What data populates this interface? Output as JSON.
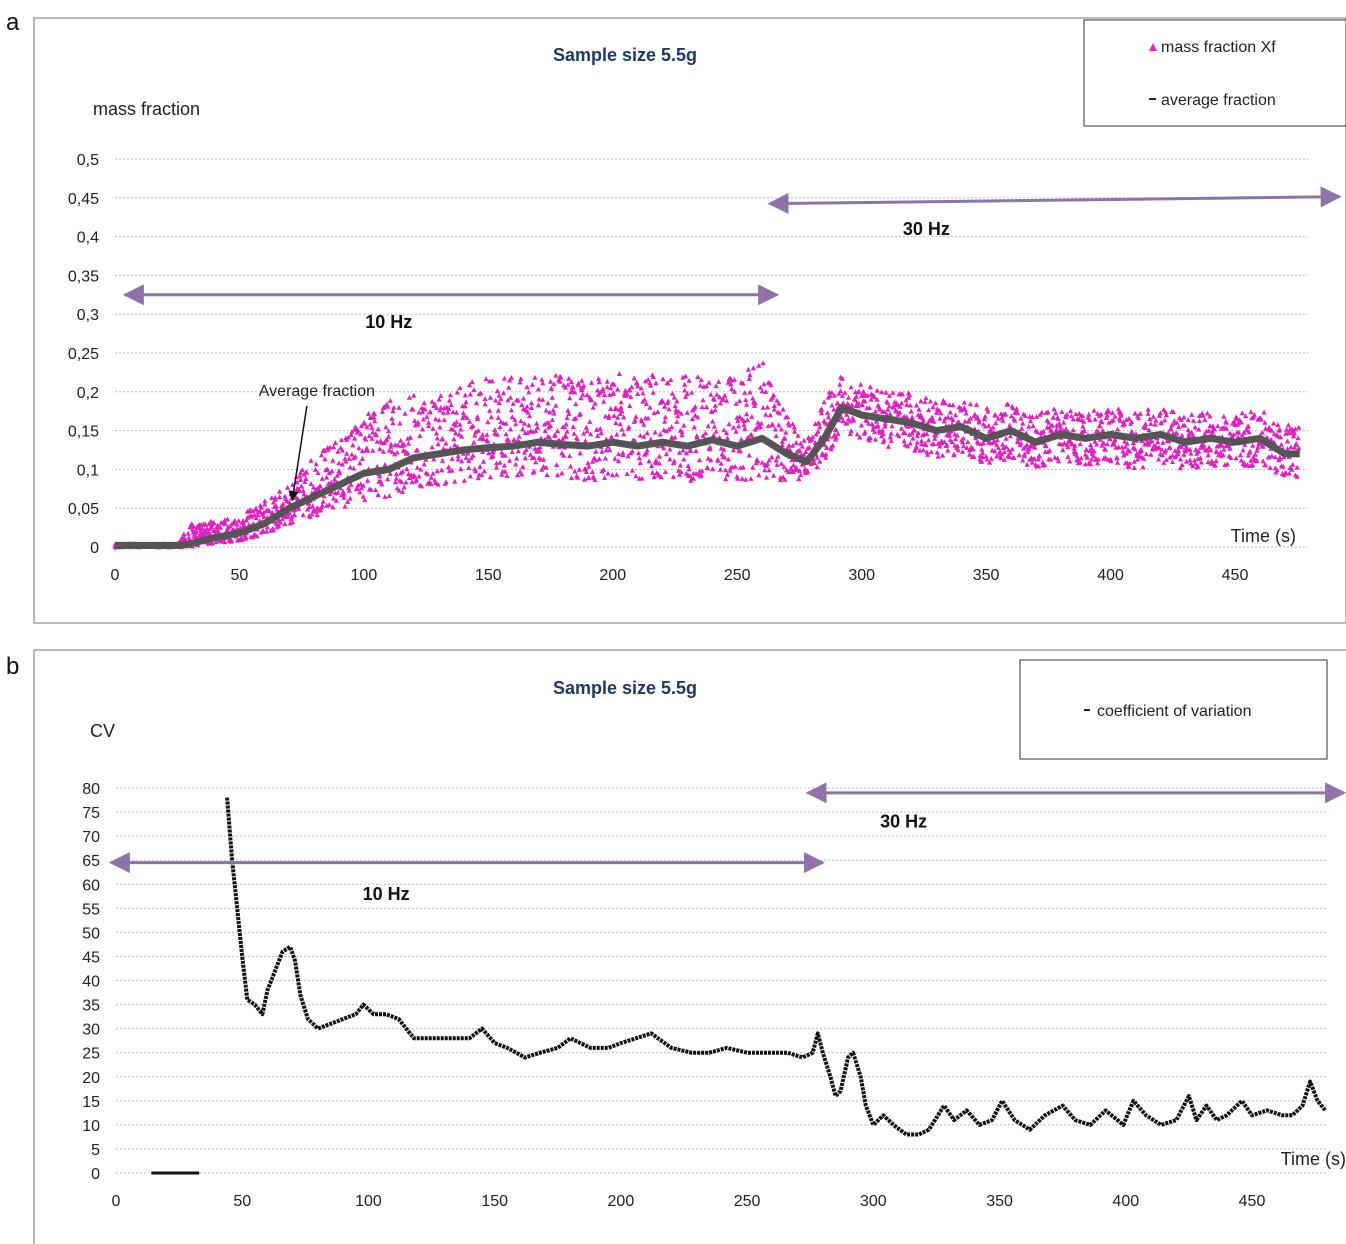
{
  "chart_data": [
    {
      "panel_label": "a",
      "type": "scatter",
      "title": "Sample size  5.5g",
      "ylabel": "mass fraction",
      "xlabel": "Time (s)",
      "xlim": [
        0,
        480
      ],
      "ylim": [
        0,
        0.5
      ],
      "x_ticks": [
        0,
        50,
        100,
        150,
        200,
        250,
        300,
        350,
        400,
        450
      ],
      "y_ticks": [
        "0",
        "0,05",
        "0,1",
        "0,15",
        "0,2",
        "0,25",
        "0,3",
        "0,35",
        "0,4",
        "0,45",
        "0,5"
      ],
      "y_tick_values": [
        0,
        0.05,
        0.1,
        0.15,
        0.2,
        0.25,
        0.3,
        0.35,
        0.4,
        0.45,
        0.5
      ],
      "grid": true,
      "legend_placement": "top-right",
      "legend": [
        "mass fraction Xf",
        "average fraction"
      ],
      "colors": {
        "scatter": "#e020c0",
        "average": "#555555",
        "arrow": "#8e72a8"
      },
      "annotations": [
        {
          "text": "10 Hz",
          "x_from": 4,
          "x_to": 266,
          "y": 0.325,
          "label_x": 110,
          "label_y": 0.29
        },
        {
          "text": "30 Hz",
          "x_from": 263,
          "x_to": 492,
          "y": 0.445,
          "label_x": 326,
          "label_y": 0.41
        },
        {
          "text": "Average fraction",
          "x": 72,
          "y": 0.06,
          "label_x": 53,
          "label_y": 0.2
        }
      ],
      "series": [
        {
          "name": "average fraction",
          "type": "line",
          "x": [
            0,
            25,
            30,
            40,
            50,
            60,
            70,
            80,
            90,
            100,
            110,
            120,
            130,
            140,
            150,
            160,
            170,
            180,
            190,
            200,
            210,
            220,
            230,
            240,
            250,
            260,
            270,
            278,
            285,
            292,
            300,
            310,
            320,
            330,
            340,
            350,
            360,
            370,
            380,
            390,
            400,
            410,
            420,
            430,
            440,
            450,
            460,
            470,
            476
          ],
          "y": [
            0.002,
            0.002,
            0.004,
            0.012,
            0.018,
            0.03,
            0.05,
            0.065,
            0.08,
            0.095,
            0.1,
            0.115,
            0.12,
            0.125,
            0.128,
            0.13,
            0.135,
            0.132,
            0.13,
            0.135,
            0.13,
            0.135,
            0.13,
            0.138,
            0.13,
            0.14,
            0.12,
            0.11,
            0.14,
            0.18,
            0.17,
            0.165,
            0.16,
            0.15,
            0.155,
            0.14,
            0.15,
            0.135,
            0.145,
            0.14,
            0.145,
            0.14,
            0.145,
            0.135,
            0.14,
            0.135,
            0.14,
            0.12,
            0.12
          ]
        },
        {
          "name": "mass fraction Xf",
          "type": "scatter",
          "x": [
            0,
            25,
            30,
            40,
            50,
            60,
            70,
            80,
            90,
            100,
            110,
            120,
            130,
            140,
            150,
            160,
            170,
            180,
            190,
            200,
            210,
            220,
            230,
            240,
            250,
            260,
            270,
            278,
            285,
            292,
            300,
            310,
            320,
            330,
            340,
            350,
            360,
            370,
            380,
            390,
            400,
            410,
            420,
            430,
            440,
            450,
            460,
            470,
            476
          ],
          "y_low": [
            0,
            0,
            0,
            0.005,
            0.008,
            0.015,
            0.03,
            0.04,
            0.05,
            0.06,
            0.065,
            0.075,
            0.08,
            0.085,
            0.09,
            0.09,
            0.095,
            0.09,
            0.085,
            0.09,
            0.085,
            0.09,
            0.085,
            0.09,
            0.085,
            0.09,
            0.085,
            0.09,
            0.11,
            0.15,
            0.14,
            0.13,
            0.125,
            0.115,
            0.12,
            0.105,
            0.115,
            0.1,
            0.11,
            0.105,
            0.11,
            0.1,
            0.11,
            0.1,
            0.105,
            0.1,
            0.105,
            0.09,
            0.09
          ],
          "y_high": [
            0.004,
            0.004,
            0.03,
            0.035,
            0.04,
            0.06,
            0.08,
            0.12,
            0.14,
            0.17,
            0.19,
            0.2,
            0.2,
            0.21,
            0.22,
            0.22,
            0.225,
            0.22,
            0.215,
            0.225,
            0.22,
            0.225,
            0.22,
            0.23,
            0.22,
            0.24,
            0.17,
            0.14,
            0.19,
            0.225,
            0.21,
            0.2,
            0.2,
            0.19,
            0.19,
            0.18,
            0.185,
            0.175,
            0.18,
            0.175,
            0.18,
            0.175,
            0.18,
            0.17,
            0.175,
            0.17,
            0.18,
            0.16,
            0.155
          ]
        }
      ]
    },
    {
      "panel_label": "b",
      "type": "line",
      "title": "Sample size  5.5g",
      "ylabel": "CV",
      "xlabel": "Time (s)",
      "xlim": [
        0,
        480
      ],
      "ylim": [
        0,
        80
      ],
      "x_ticks": [
        0,
        50,
        100,
        150,
        200,
        250,
        300,
        350,
        400,
        450
      ],
      "y_ticks": [
        0,
        5,
        10,
        15,
        20,
        25,
        30,
        35,
        40,
        45,
        50,
        55,
        60,
        65,
        70,
        75,
        80
      ],
      "grid": true,
      "legend_placement": "top-right",
      "legend": [
        "coefficient of variation"
      ],
      "colors": {
        "line": "#111111",
        "arrow": "#8e72a8"
      },
      "annotations": [
        {
          "text": "10 Hz",
          "x_from": -2,
          "x_to": 280,
          "y": 64.5,
          "label_x": 107,
          "label_y": 58
        },
        {
          "text": "30 Hz",
          "x_from": 274,
          "x_to": 492,
          "y": 79,
          "label_x": 312,
          "label_y": 73
        }
      ],
      "series": [
        {
          "name": "coefficient of variation",
          "x": [
            44,
            46,
            48,
            50,
            52,
            55,
            58,
            60,
            63,
            66,
            69,
            71,
            73,
            76,
            80,
            85,
            90,
            95,
            98,
            102,
            107,
            112,
            118,
            125,
            133,
            140,
            145,
            150,
            155,
            162,
            168,
            175,
            180,
            188,
            195,
            200,
            206,
            212,
            220,
            228,
            235,
            242,
            250,
            258,
            266,
            272,
            276,
            278,
            280,
            283,
            285,
            287,
            290,
            292,
            295,
            297,
            300,
            304,
            308,
            313,
            318,
            322,
            328,
            332,
            337,
            342,
            347,
            351,
            356,
            362,
            368,
            375,
            380,
            386,
            392,
            399,
            403,
            408,
            414,
            420,
            425,
            428,
            432,
            436,
            440,
            446,
            450,
            456,
            462,
            466,
            470,
            473,
            476,
            479
          ],
          "y": [
            78,
            65,
            55,
            45,
            36,
            35,
            33,
            38,
            42,
            46,
            47,
            44,
            37,
            32,
            30,
            31,
            32,
            33,
            35,
            33,
            33,
            32,
            28,
            28,
            28,
            28,
            30,
            27,
            26,
            24,
            25,
            26,
            28,
            26,
            26,
            27,
            28,
            29,
            26,
            25,
            25,
            26,
            25,
            25,
            25,
            24,
            25,
            29,
            25,
            20,
            16,
            17,
            24,
            25,
            20,
            14,
            10,
            12,
            10,
            8,
            8,
            9,
            14,
            11,
            13,
            10,
            11,
            15,
            11,
            9,
            12,
            14,
            11,
            10,
            13,
            10,
            15,
            12,
            10,
            11,
            16,
            11,
            14,
            11,
            12,
            15,
            12,
            13,
            12,
            12,
            14,
            19,
            15,
            13
          ]
        },
        {
          "name": "",
          "x": [
            14,
            33
          ],
          "y": [
            0,
            0
          ]
        }
      ]
    }
  ]
}
